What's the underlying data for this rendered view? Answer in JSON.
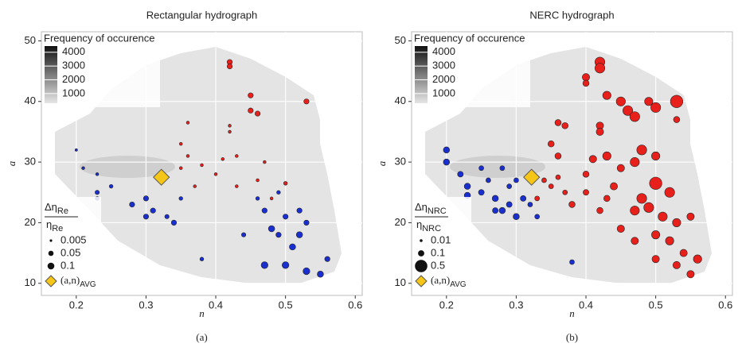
{
  "chart_data": [
    {
      "type": "scatter",
      "title": "Rectangular hydrograph",
      "x_label": "n",
      "y_label": "a",
      "caption": "(a)",
      "xlim": [
        0.15,
        0.61
      ],
      "ylim": [
        8,
        51.5
      ],
      "xticks": [
        0.2,
        0.3,
        0.4,
        0.5,
        0.6
      ],
      "yticks": [
        10,
        20,
        30,
        40,
        50
      ],
      "grid": true,
      "freq_legend": {
        "title": "Frequency of occurence",
        "lim": [
          300,
          4450
        ],
        "ticks": [
          1000,
          2000,
          3000,
          4000
        ]
      },
      "size_legend": {
        "numerator": "Δη",
        "numerator_sub": "Re",
        "denominator": "η",
        "denominator_sub": "Re",
        "values": [
          0.005,
          0.05,
          0.1
        ]
      },
      "avg": {
        "x": 0.322,
        "y": 27.5,
        "label": "(a,n)",
        "label_sub": "AVG",
        "color": "#f5c518"
      },
      "series": [
        {
          "color": "#e8201c",
          "x": [
            0.42,
            0.42,
            0.45,
            0.45,
            0.46,
            0.53,
            0.42,
            0.42,
            0.36,
            0.35,
            0.36,
            0.43,
            0.41,
            0.47,
            0.38,
            0.5,
            0.46,
            0.4,
            0.35,
            0.48,
            0.43,
            0.37
          ],
          "values": [
            46.5,
            45.8,
            38.5,
            41,
            38,
            40,
            36,
            35,
            36.5,
            33,
            31,
            31,
            30.5,
            30,
            29.5,
            26.5,
            27,
            28,
            29,
            24,
            26,
            26
          ],
          "sizes": [
            0.05,
            0.05,
            0.05,
            0.05,
            0.05,
            0.05,
            0.01,
            0.01,
            0.01,
            0.01,
            0.01,
            0.01,
            0.01,
            0.01,
            0.01,
            0.02,
            0.01,
            0.01,
            0.01,
            0.01,
            0.01,
            0.01
          ]
        },
        {
          "color": "#1a2fd0",
          "x": [
            0.2,
            0.21,
            0.23,
            0.25,
            0.23,
            0.23,
            0.28,
            0.3,
            0.31,
            0.33,
            0.3,
            0.34,
            0.35,
            0.47,
            0.48,
            0.49,
            0.5,
            0.51,
            0.52,
            0.5,
            0.47,
            0.53,
            0.55,
            0.56,
            0.52,
            0.46,
            0.38,
            0.44,
            0.53,
            0.49
          ],
          "values": [
            32,
            29,
            28,
            26,
            25,
            24,
            23,
            24,
            22,
            21,
            21,
            20,
            24,
            22,
            19,
            18,
            21,
            16,
            18,
            13,
            13,
            12,
            11.5,
            14,
            22,
            24,
            14,
            18,
            20,
            25
          ],
          "sizes": [
            0.005,
            0.01,
            0.01,
            0.02,
            0.03,
            0.02,
            0.05,
            0.05,
            0.05,
            0.03,
            0.05,
            0.05,
            0.02,
            0.05,
            0.08,
            0.05,
            0.05,
            0.08,
            0.08,
            0.1,
            0.1,
            0.1,
            0.08,
            0.05,
            0.05,
            0.02,
            0.02,
            0.03,
            0.05,
            0.02
          ]
        }
      ]
    },
    {
      "type": "scatter",
      "title": "NERC hydrograph",
      "x_label": "n",
      "y_label": "a",
      "caption": "(b)",
      "xlim": [
        0.15,
        0.61
      ],
      "ylim": [
        8,
        51.5
      ],
      "xticks": [
        0.2,
        0.3,
        0.4,
        0.5,
        0.6
      ],
      "yticks": [
        10,
        20,
        30,
        40,
        50
      ],
      "grid": true,
      "freq_legend": {
        "title": "Frequency of occurence",
        "lim": [
          300,
          4450
        ],
        "ticks": [
          1000,
          2000,
          3000,
          4000
        ]
      },
      "size_legend": {
        "numerator": "Δη",
        "numerator_sub": "NRC",
        "denominator": "η",
        "denominator_sub": "NRC",
        "values": [
          0.01,
          0.1,
          0.5
        ]
      },
      "avg": {
        "x": 0.322,
        "y": 27.5,
        "label": "(a,n)",
        "label_sub": "AVG",
        "color": "#f5c518"
      },
      "series": [
        {
          "color": "#e8201c",
          "x": [
            0.42,
            0.42,
            0.4,
            0.4,
            0.43,
            0.45,
            0.46,
            0.47,
            0.49,
            0.5,
            0.53,
            0.53,
            0.42,
            0.42,
            0.36,
            0.37,
            0.35,
            0.36,
            0.43,
            0.41,
            0.47,
            0.48,
            0.5,
            0.45,
            0.4,
            0.5,
            0.52,
            0.48,
            0.47,
            0.49,
            0.51,
            0.53,
            0.55,
            0.5,
            0.52,
            0.54,
            0.5,
            0.53,
            0.55,
            0.56,
            0.47,
            0.45,
            0.42,
            0.43,
            0.44,
            0.38,
            0.37,
            0.35,
            0.34,
            0.33,
            0.36,
            0.4
          ],
          "values": [
            46.5,
            45.5,
            44,
            43,
            41,
            40,
            38.5,
            37.5,
            40,
            39,
            40,
            37,
            36,
            35,
            36.5,
            36,
            33,
            31,
            31,
            30.5,
            30,
            32,
            31,
            29,
            28,
            26.5,
            25,
            24,
            22,
            22.5,
            21,
            20,
            21,
            18,
            17,
            15,
            14,
            13,
            11.5,
            14,
            17,
            19,
            22,
            24,
            26,
            23,
            25,
            26,
            27,
            24,
            27.5,
            25
          ],
          "sizes": [
            0.3,
            0.3,
            0.15,
            0.1,
            0.2,
            0.25,
            0.3,
            0.3,
            0.2,
            0.3,
            0.5,
            0.1,
            0.15,
            0.15,
            0.1,
            0.1,
            0.1,
            0.1,
            0.2,
            0.15,
            0.25,
            0.3,
            0.2,
            0.15,
            0.1,
            0.5,
            0.3,
            0.3,
            0.25,
            0.3,
            0.25,
            0.2,
            0.15,
            0.2,
            0.2,
            0.15,
            0.15,
            0.15,
            0.15,
            0.2,
            0.15,
            0.15,
            0.1,
            0.1,
            0.15,
            0.1,
            0.05,
            0.05,
            0.05,
            0.05,
            0.05,
            0.08
          ]
        },
        {
          "color": "#1a2fd0",
          "x": [
            0.2,
            0.2,
            0.22,
            0.23,
            0.23,
            0.25,
            0.26,
            0.27,
            0.28,
            0.29,
            0.3,
            0.31,
            0.25,
            0.28,
            0.3,
            0.32,
            0.33,
            0.38,
            0.27,
            0.29
          ],
          "values": [
            32,
            30,
            28,
            26,
            24.5,
            25,
            27,
            24,
            22,
            23,
            21,
            24,
            29,
            29,
            27,
            23,
            21,
            13.5,
            22,
            26
          ],
          "sizes": [
            0.1,
            0.1,
            0.08,
            0.1,
            0.1,
            0.08,
            0.05,
            0.1,
            0.1,
            0.08,
            0.1,
            0.08,
            0.05,
            0.05,
            0.05,
            0.05,
            0.05,
            0.05,
            0.08,
            0.05
          ]
        }
      ]
    }
  ]
}
